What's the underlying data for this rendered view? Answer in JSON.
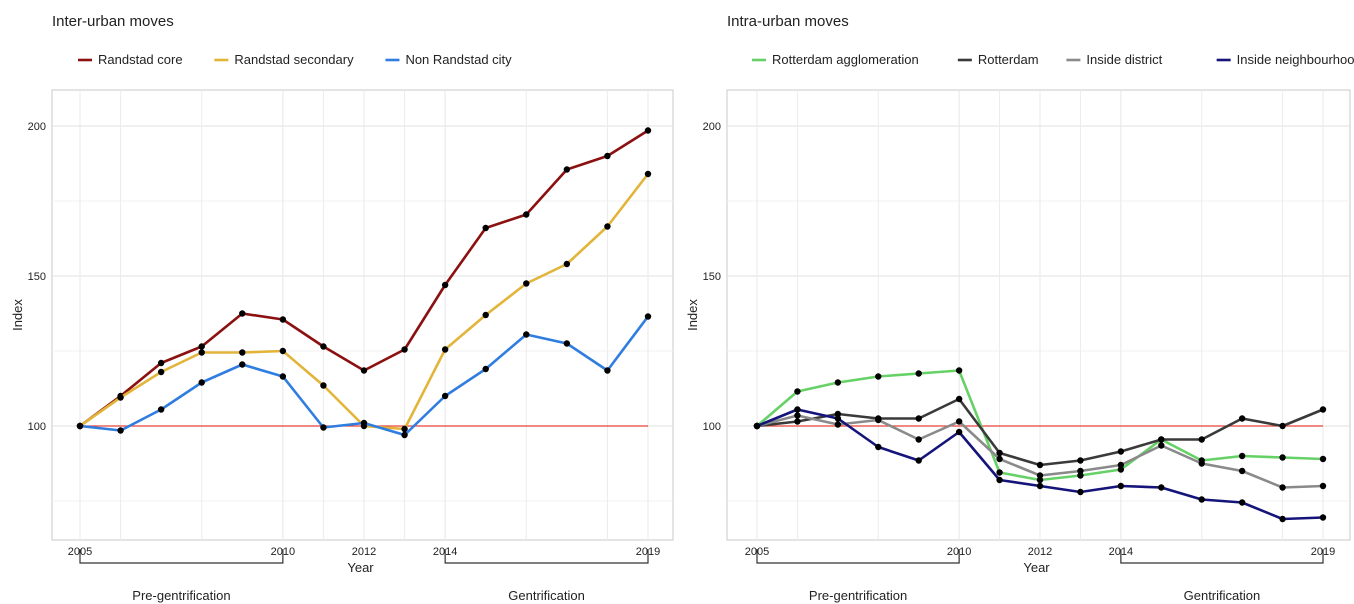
{
  "chart_data": [
    {
      "type": "line",
      "title": "Inter-urban moves",
      "xlabel": "Year",
      "ylabel": "Index",
      "x": [
        2005,
        2006,
        2007,
        2008,
        2009,
        2010,
        2011,
        2012,
        2013,
        2014,
        2015,
        2016,
        2017,
        2018,
        2019
      ],
      "x_tick_labels": [
        "2005",
        "2010",
        "2012",
        "2014",
        "2019"
      ],
      "y_ticks": [
        100,
        150,
        200
      ],
      "xlim": [
        2004.3,
        2019.7
      ],
      "ylim": [
        62,
        212
      ],
      "reference_line": {
        "y": 100,
        "color": "#e8403a"
      },
      "grid": true,
      "legend_position": "top",
      "series": [
        {
          "name": "Randstad core",
          "color": "#8b1010",
          "values": [
            100,
            110,
            121,
            126.5,
            137.5,
            135.5,
            126.5,
            118.5,
            125.5,
            147,
            166,
            170.5,
            185.5,
            190,
            198.5
          ]
        },
        {
          "name": "Randstad secondary",
          "color": "#e2b53a",
          "values": [
            100,
            109.5,
            118,
            124.5,
            124.5,
            125,
            113.5,
            100,
            99,
            125.5,
            137,
            147.5,
            154,
            166.5,
            184
          ]
        },
        {
          "name": "Non Randstad city",
          "color": "#2f7de0",
          "values": [
            100,
            98.5,
            105.5,
            114.5,
            120.5,
            116.5,
            99.5,
            101,
            97,
            110,
            119,
            130.5,
            127.5,
            118.5,
            136.5
          ]
        }
      ],
      "phases": [
        {
          "label": "Pre-gentrification",
          "from": 2005,
          "to": 2010
        },
        {
          "label": "Gentrification",
          "from": 2014,
          "to": 2019
        }
      ]
    },
    {
      "type": "line",
      "title": "Intra-urban moves",
      "xlabel": "Year",
      "ylabel": "Index",
      "x": [
        2005,
        2006,
        2007,
        2008,
        2009,
        2010,
        2011,
        2012,
        2013,
        2014,
        2015,
        2016,
        2017,
        2018,
        2019
      ],
      "x_tick_labels": [
        "2005",
        "2010",
        "2012",
        "2014",
        "2019"
      ],
      "y_ticks": [
        100,
        150,
        200
      ],
      "xlim": [
        2004.3,
        2019.7
      ],
      "ylim": [
        62,
        212
      ],
      "reference_line": {
        "y": 100,
        "color": "#e8403a"
      },
      "grid": true,
      "legend_position": "top",
      "series": [
        {
          "name": "Rotterdam agglomeration",
          "color": "#66d166",
          "values": [
            100,
            111.5,
            114.5,
            116.5,
            117.5,
            118.5,
            84.5,
            82,
            83.5,
            85.5,
            95.5,
            88.5,
            90,
            89.5,
            89
          ]
        },
        {
          "name": "Rotterdam",
          "color": "#3a3a3a",
          "values": [
            100,
            101.5,
            104,
            102.5,
            102.5,
            109,
            91,
            87,
            88.5,
            91.5,
            95.5,
            95.5,
            102.5,
            100,
            105.5
          ]
        },
        {
          "name": "Inside district",
          "color": "#8a8a8a",
          "values": [
            100,
            103.5,
            100.5,
            102,
            95.5,
            101.5,
            89,
            83.5,
            85,
            87,
            93.5,
            87.5,
            85,
            79.5,
            80
          ]
        },
        {
          "name": "Inside neighbourhood",
          "color": "#14147a",
          "values": [
            100,
            105.5,
            102.5,
            93,
            88.5,
            98,
            82,
            80,
            78,
            80,
            79.5,
            75.5,
            74.5,
            69,
            69.5
          ]
        }
      ],
      "phases": [
        {
          "label": "Pre-gentrification",
          "from": 2005,
          "to": 2010
        },
        {
          "label": "Gentrification",
          "from": 2014,
          "to": 2019
        }
      ]
    }
  ]
}
